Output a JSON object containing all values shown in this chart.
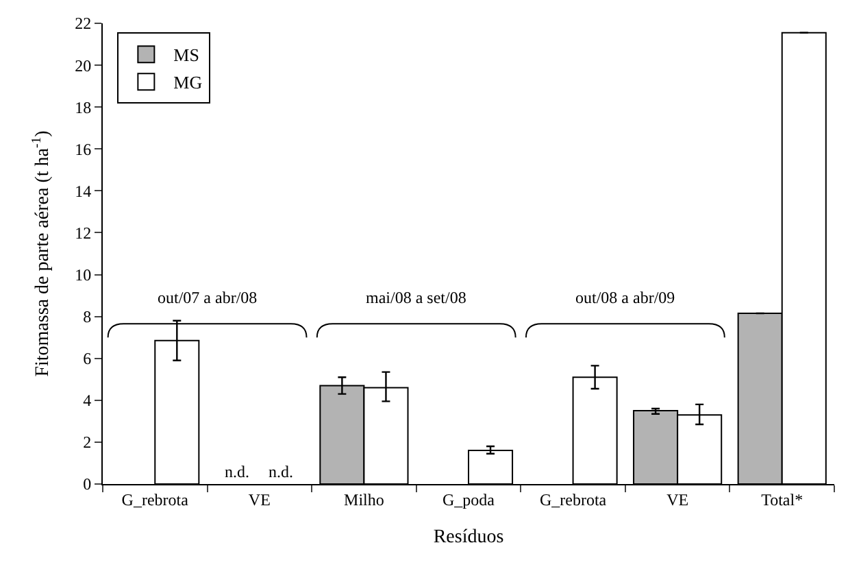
{
  "chart_data": {
    "type": "bar",
    "xlabel": "Resíduos",
    "ylabel": "Fitomassa de parte aérea (t ha$^{-1}$)",
    "categories": [
      "G_rebrota",
      "VE",
      "Milho",
      "G_poda",
      "G_rebrota",
      "VE",
      "Total*"
    ],
    "series": [
      {
        "name": "MS",
        "color": "#b3b3b3",
        "values": [
          null,
          null,
          4.7,
          null,
          null,
          3.5,
          8.15
        ],
        "errors": [
          null,
          null,
          [
            4.3,
            5.1
          ],
          null,
          null,
          [
            3.35,
            3.6
          ],
          null
        ]
      },
      {
        "name": "MG",
        "color": "#ffffff",
        "values": [
          6.85,
          null,
          4.6,
          1.6,
          5.1,
          3.3,
          21.55
        ],
        "errors": [
          [
            5.9,
            7.8
          ],
          null,
          [
            3.95,
            5.35
          ],
          [
            1.45,
            1.8
          ],
          [
            4.55,
            5.65
          ],
          [
            2.85,
            3.8
          ],
          null
        ]
      }
    ],
    "ylim": [
      0,
      22
    ],
    "yticks": [
      0,
      2,
      4,
      6,
      8,
      10,
      12,
      14,
      16,
      18,
      20,
      22
    ],
    "annotations": [
      "n.d.",
      "n.d.",
      "out/07 a abr/08",
      "mai/08 a set/08",
      "out/08 a abr/09"
    ],
    "legend": "top left"
  }
}
